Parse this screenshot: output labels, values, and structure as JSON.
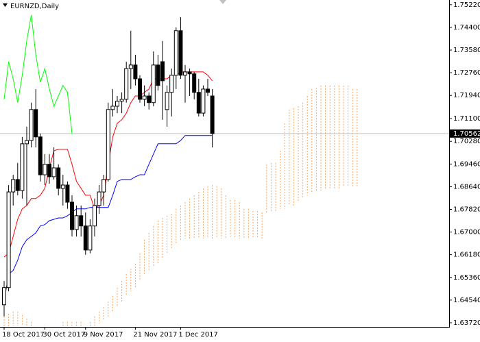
{
  "chart_data": {
    "type": "candlestick",
    "title": "EURNZD,Daily",
    "categories": [
      "18 Oct 2017",
      null,
      null,
      null,
      null,
      null,
      null,
      null,
      null,
      "30 Oct 2017",
      null,
      null,
      null,
      null,
      null,
      null,
      null,
      null,
      "9 Nov 2017",
      null,
      null,
      null,
      null,
      null,
      null,
      null,
      null,
      null,
      null,
      "21 Nov 2017",
      null,
      null,
      null,
      null,
      null,
      null,
      null,
      null,
      null,
      "1 Dec 2017",
      null,
      null,
      null,
      null,
      null,
      null,
      null,
      null,
      null,
      null,
      null,
      null,
      null,
      null,
      null,
      null,
      null,
      null,
      null,
      null,
      null,
      null,
      null,
      null,
      null,
      null,
      null,
      null,
      null,
      null,
      null,
      null,
      null,
      null,
      null,
      null,
      null,
      null,
      null
    ],
    "open": [
      1.6437,
      1.6499,
      1.6845,
      1.689,
      1.685,
      1.7019,
      1.7031,
      1.7143,
      1.7044,
      1.6907,
      1.6945,
      1.69,
      1.6932,
      1.6858,
      1.687,
      1.6808,
      1.6709,
      1.6759,
      1.6722,
      1.6635,
      1.6722,
      1.6796,
      1.6845,
      1.689,
      1.7143,
      1.7155,
      1.7173,
      1.718,
      1.7291,
      1.7304,
      1.7254,
      1.718,
      1.7192,
      1.7168,
      1.7304,
      1.7316,
      1.7143,
      1.7205,
      1.7267,
      1.7428,
      1.7267,
      1.7279,
      1.7272,
      1.7205,
      1.713,
      1.7217,
      1.7192,
      null,
      null,
      null,
      null,
      null,
      null,
      null,
      null,
      null,
      null,
      null,
      null,
      null,
      null,
      null,
      null,
      null,
      null,
      null,
      null,
      null,
      null,
      null,
      null,
      null,
      null,
      null,
      null,
      null,
      null,
      null,
      null
    ],
    "high": [
      1.6523,
      1.687,
      1.6907,
      1.695,
      1.7044,
      1.7081,
      1.7168,
      1.7217,
      1.7056,
      1.6982,
      1.6982,
      1.7006,
      1.6945,
      1.6907,
      1.6883,
      1.6833,
      1.6796,
      1.6796,
      1.6771,
      1.6746,
      1.6821,
      1.687,
      1.6907,
      1.7168,
      1.7217,
      1.7192,
      1.7205,
      1.7316,
      1.7428,
      1.7341,
      1.7267,
      1.723,
      1.7205,
      1.7353,
      1.7341,
      1.7391,
      1.723,
      1.7291,
      1.744,
      1.7477,
      1.7304,
      1.7291,
      1.7279,
      1.7254,
      1.723,
      1.7254,
      1.7217,
      null,
      null,
      null,
      null,
      null,
      null,
      null,
      null,
      null,
      null,
      null,
      null,
      null,
      null,
      null,
      null,
      null,
      null,
      null,
      null,
      null,
      null,
      null,
      null,
      null,
      null,
      null,
      null,
      null,
      null,
      null,
      null
    ],
    "low": [
      1.6395,
      1.6486,
      1.6796,
      1.6833,
      1.6821,
      1.6796,
      1.7006,
      1.7006,
      1.6883,
      1.687,
      1.6875,
      1.689,
      1.6833,
      1.6796,
      1.6784,
      1.6684,
      1.6684,
      1.6684,
      1.6618,
      1.6623,
      1.6684,
      1.6766,
      1.6796,
      1.6883,
      1.7118,
      1.713,
      1.713,
      1.7168,
      1.7217,
      1.723,
      1.7168,
      1.7155,
      1.7143,
      1.7155,
      1.7212,
      1.7106,
      1.7081,
      1.7118,
      1.7217,
      1.7254,
      1.7168,
      1.7192,
      1.718,
      1.7118,
      1.7118,
      1.7192,
      1.7006,
      null,
      null,
      null,
      null,
      null,
      null,
      null,
      null,
      null,
      null,
      null,
      null,
      null,
      null,
      null,
      null,
      null,
      null,
      null,
      null,
      null,
      null,
      null,
      null,
      null,
      null,
      null,
      null,
      null,
      null,
      null,
      null
    ],
    "close": [
      1.6499,
      1.6845,
      1.689,
      1.685,
      1.7019,
      1.7031,
      1.7143,
      1.7044,
      1.6907,
      1.6945,
      1.69,
      1.6932,
      1.6858,
      1.687,
      1.6808,
      1.6709,
      1.6759,
      1.6722,
      1.6635,
      1.6722,
      1.6796,
      1.6845,
      1.689,
      1.7143,
      1.7155,
      1.7173,
      1.718,
      1.7291,
      1.7304,
      1.7254,
      1.718,
      1.7192,
      1.7168,
      1.7304,
      1.723,
      1.7247,
      1.7205,
      1.7267,
      1.7428,
      1.7267,
      1.7279,
      1.7272,
      1.7205,
      1.713,
      1.7217,
      1.7205,
      1.70562,
      null,
      null,
      null,
      null,
      null,
      null,
      null,
      null,
      null,
      null,
      null,
      null,
      null,
      null,
      null,
      null,
      null,
      null,
      null,
      null,
      null,
      null,
      null,
      null,
      null,
      null,
      null,
      null,
      null,
      null,
      null,
      null
    ],
    "up_color": "#ffffff",
    "down_color": "#000000",
    "series": [
      {
        "color": "#ff0000",
        "values": [
          1.661,
          1.6623,
          1.6684,
          1.6746,
          1.6784,
          1.6796,
          1.6821,
          1.6821,
          1.6833,
          1.6858,
          1.6932,
          1.6994,
          1.6999,
          1.6999,
          1.6999,
          1.6945,
          1.6883,
          1.6858,
          1.6833,
          1.6833,
          1.6784,
          1.6796,
          1.6833,
          1.6945,
          1.7044,
          1.7093,
          1.7106,
          1.713,
          1.7168,
          1.7192,
          1.7192,
          1.7205,
          1.7217,
          1.7254,
          1.7254,
          1.7254,
          1.7254,
          1.7267,
          1.7267,
          1.7279,
          1.7279,
          1.7279,
          1.7279,
          1.7279,
          1.7279,
          1.7267,
          1.7247,
          null,
          null,
          null,
          null,
          null,
          null,
          null,
          null,
          null,
          null,
          null,
          null,
          null,
          null,
          null,
          null,
          null,
          null,
          null,
          null,
          null,
          null,
          null,
          null,
          null,
          null,
          null,
          null,
          null,
          null,
          null,
          null
        ]
      },
      {
        "color": "#0000ff",
        "values": [
          1.6449,
          1.6548,
          1.6561,
          1.6598,
          1.6647,
          1.6672,
          1.6684,
          1.6697,
          1.6722,
          1.6727,
          1.6741,
          1.6746,
          1.6751,
          1.6751,
          1.6759,
          1.6771,
          1.6784,
          1.6784,
          1.6784,
          1.6789,
          1.6789,
          1.6789,
          1.6789,
          1.6789,
          1.6833,
          1.6883,
          1.689,
          1.689,
          1.689,
          1.69,
          1.6907,
          1.6907,
          1.6945,
          1.6982,
          1.7019,
          1.7019,
          1.7019,
          1.7019,
          1.7019,
          1.7031,
          1.7049,
          1.7049,
          1.7049,
          1.7049,
          1.7049,
          1.7049,
          1.7049,
          null,
          null,
          null,
          null,
          null,
          null,
          null,
          null,
          null,
          null,
          null,
          null,
          null,
          null,
          null,
          null,
          null,
          null,
          null,
          null,
          null,
          null,
          null,
          null,
          null,
          null,
          null,
          null,
          null,
          null,
          null,
          null
        ]
      },
      {
        "color": "#00ff00",
        "values": [
          1.718,
          1.7316,
          1.7254,
          1.7168,
          1.7267,
          1.7391,
          1.7485,
          1.7341,
          1.7242,
          1.7291,
          1.7217,
          1.7155,
          1.7192,
          1.723,
          1.7205,
          1.7056,
          null,
          null,
          null,
          null,
          null,
          null,
          null,
          null,
          null,
          null,
          null,
          null,
          null,
          null,
          null,
          null,
          null,
          null,
          null,
          null,
          null,
          null,
          null,
          null,
          null,
          null,
          null,
          null,
          null,
          null,
          null,
          null,
          null,
          null,
          null,
          null,
          null,
          null,
          null,
          null,
          null,
          null,
          null,
          null,
          null,
          null,
          null,
          null,
          null,
          null,
          null,
          null,
          null,
          null,
          null,
          null,
          null,
          null,
          null,
          null,
          null,
          null,
          null
        ]
      }
    ],
    "cloud": {
      "color": "#f4a460",
      "span_a": [
        1.6395,
        1.6404,
        1.6412,
        1.6412,
        1.64,
        1.6387,
        1.6375,
        1.636,
        1.636,
        1.636,
        1.636,
        1.636,
        1.636,
        1.6375,
        1.6375,
        1.6375,
        1.6375,
        1.6375,
        1.636,
        1.6375,
        1.6395,
        1.6412,
        1.6429,
        1.6449,
        1.6469,
        1.6499,
        1.6523,
        1.6548,
        1.6568,
        1.6585,
        1.6623,
        1.6672,
        1.6697,
        1.6722,
        1.6741,
        1.6751,
        1.6759,
        1.6766,
        1.6784,
        1.6796,
        1.6808,
        1.6821,
        1.6833,
        1.6845,
        1.6858,
        1.6866,
        1.687,
        1.6866,
        1.6858,
        1.6833,
        1.6816,
        1.6816,
        1.6808,
        1.6784,
        1.6784,
        1.6776,
        1.6776,
        1.6771,
        1.6945,
        1.695,
        1.695,
        1.6994,
        1.7093,
        1.7143,
        1.7148,
        1.7155,
        1.7168,
        1.7192,
        1.7217,
        1.7222,
        1.723,
        1.723,
        1.723,
        1.723,
        1.723,
        1.723,
        1.723,
        1.7217,
        1.7217
      ],
      "span_b": [
        1.636,
        1.636,
        1.636,
        1.636,
        1.636,
        1.636,
        1.636,
        1.636,
        1.636,
        1.636,
        1.636,
        1.636,
        1.636,
        1.636,
        1.636,
        1.636,
        1.636,
        1.636,
        1.636,
        1.636,
        1.636,
        1.637,
        1.638,
        1.6395,
        1.6412,
        1.6429,
        1.6449,
        1.6469,
        1.6486,
        1.6499,
        1.6523,
        1.6548,
        1.6561,
        1.6573,
        1.6585,
        1.6603,
        1.6623,
        1.6642,
        1.666,
        1.6672,
        1.6677,
        1.6677,
        1.6677,
        1.6677,
        1.6677,
        1.6677,
        1.6677,
        1.6677,
        1.6677,
        1.6677,
        1.6677,
        1.6677,
        1.6677,
        1.6677,
        1.6677,
        1.6677,
        1.6677,
        1.6677,
        1.6771,
        1.6771,
        1.6771,
        1.6784,
        1.6784,
        1.6796,
        1.6796,
        1.6808,
        1.6821,
        1.6833,
        1.6845,
        1.6845,
        1.685,
        1.6858,
        1.6858,
        1.6858,
        1.6858,
        1.6866,
        1.6866,
        1.6866,
        1.6866
      ]
    },
    "last_price": 1.70562,
    "price_line_color": "#c0c0c0",
    "grid": false,
    "ylim": [
      1.6357,
      1.7539
    ],
    "yticks": [
      {
        "value": 1.7522,
        "label": "1.75220"
      },
      {
        "value": 1.744,
        "label": "1.74400"
      },
      {
        "value": 1.7358,
        "label": "1.73580"
      },
      {
        "value": 1.7276,
        "label": "1.72760"
      },
      {
        "value": 1.7194,
        "label": "1.71940"
      },
      {
        "value": 1.711,
        "label": "1.71100"
      },
      {
        "value": 1.7028,
        "label": "1.70280"
      },
      {
        "value": 1.6946,
        "label": "1.69460"
      },
      {
        "value": 1.6864,
        "label": "1.68640"
      },
      {
        "value": 1.6782,
        "label": "1.67820"
      },
      {
        "value": 1.67,
        "label": "1.67000"
      },
      {
        "value": 1.6618,
        "label": "1.66180"
      },
      {
        "value": 1.6536,
        "label": "1.65360"
      },
      {
        "value": 1.6454,
        "label": "1.64540"
      },
      {
        "value": 1.6372,
        "label": "1.63720"
      }
    ]
  }
}
